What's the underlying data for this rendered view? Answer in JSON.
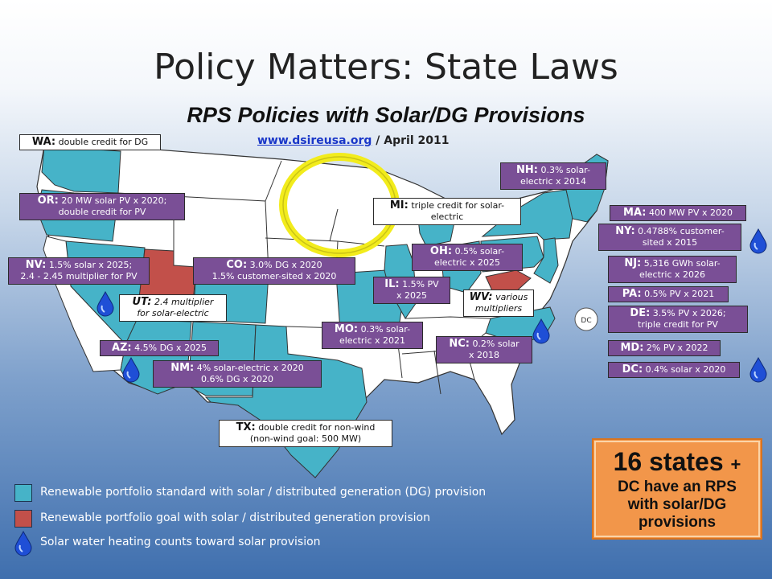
{
  "title": "Policy Matters: State Laws",
  "subtitle": "RPS Policies with Solar/DG Provisions",
  "source": {
    "link": "www.dsireusa.org",
    "date": "/ April 2011"
  },
  "colors": {
    "rps_standard": "#46b3c8",
    "rps_goal": "#c2504a",
    "label_box": "#7a4f96",
    "callout": "#f2964a",
    "highlight_circle": "#f2ec1c"
  },
  "labels": {
    "wa": {
      "abbr": "WA:",
      "text": "double credit for DG"
    },
    "or": {
      "abbr": "OR:",
      "text": "20 MW solar PV x 2020;",
      "text2": "double credit for PV"
    },
    "nv": {
      "abbr": "NV:",
      "text": "1.5% solar x 2025;",
      "text2": "2.4 - 2.45 multiplier for PV"
    },
    "ut": {
      "abbr": "UT:",
      "text": "2.4 multiplier",
      "text2": "for solar-electric"
    },
    "co": {
      "abbr": "CO:",
      "text": "3.0% DG x 2020",
      "text2": "1.5% customer-sited x 2020"
    },
    "az": {
      "abbr": "AZ:",
      "text": "4.5% DG x 2025"
    },
    "nm": {
      "abbr": "NM:",
      "text": "4% solar-electric x 2020",
      "text2": "0.6% DG x 2020"
    },
    "tx": {
      "abbr": "TX:",
      "text": "double credit for non-wind",
      "text2": "(non-wind goal: 500 MW)"
    },
    "mi": {
      "abbr": "MI:",
      "text": "triple credit for solar-",
      "text2": "electric"
    },
    "oh": {
      "abbr": "OH:",
      "text": "0.5% solar-",
      "text2": "electric x 2025"
    },
    "il": {
      "abbr": "IL:",
      "text": "1.5% PV",
      "text2": "x 2025"
    },
    "wv": {
      "abbr": "WV:",
      "text": "various",
      "text2": "multipliers"
    },
    "mo": {
      "abbr": "MO:",
      "text": "0.3% solar-",
      "text2": "electric x 2021"
    },
    "nc": {
      "abbr": "NC:",
      "text": "0.2% solar",
      "text2": "x 2018"
    },
    "nh": {
      "abbr": "NH:",
      "text": "0.3% solar-",
      "text2": "electric x 2014"
    },
    "ma": {
      "abbr": "MA:",
      "text": "400 MW PV x 2020"
    },
    "ny": {
      "abbr": "NY:",
      "text": "0.4788% customer-",
      "text2": "sited x 2015"
    },
    "nj": {
      "abbr": "NJ:",
      "text": "5,316 GWh solar-",
      "text2": "electric x 2026"
    },
    "pa": {
      "abbr": "PA:",
      "text": "0.5% PV x 2021"
    },
    "de": {
      "abbr": "DE:",
      "text": "3.5% PV x 2026;",
      "text2": "triple credit for PV"
    },
    "md": {
      "abbr": "MD:",
      "text": "2% PV x 2022"
    },
    "dc": {
      "abbr": "DC:",
      "text": "0.4% solar x 2020"
    },
    "dc_marker": "DC"
  },
  "callout": {
    "big": "16 states",
    "plus": "+",
    "line2": "DC have an RPS",
    "line3": "with solar/DG",
    "line4": "provisions"
  },
  "legend": [
    {
      "text": "Renewable portfolio standard with solar / distributed generation (DG) provision",
      "color": "#46b3c8"
    },
    {
      "text": "Renewable portfolio goal with solar / distributed generation provision",
      "color": "#c2504a"
    },
    {
      "text": "Solar water heating counts toward solar provision",
      "icon": "water-drop-icon"
    }
  ],
  "icons": {
    "drop": "water-drop-icon"
  }
}
